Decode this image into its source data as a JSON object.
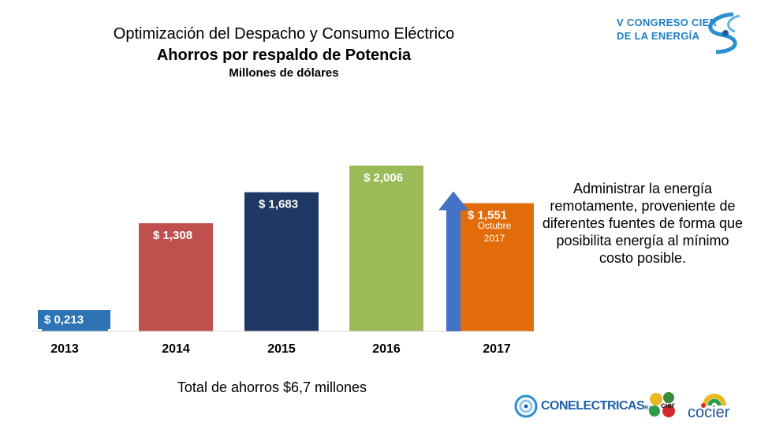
{
  "titles": {
    "line1": "Optimización del Despacho y Consumo Eléctrico",
    "line2": "Ahorros por respaldo de Potencia",
    "line3": "Millones de dólares"
  },
  "logos": {
    "congreso": "V CONGRESO CIER\nDE LA ENERGÍA",
    "conelectricas": "CONELECTRICAS",
    "conelectricas_suffix": "R.L.",
    "cier": "cier",
    "cocier": "cocier"
  },
  "side_text": "Administrar la energía remotamente,  proveniente de diferentes fuentes de forma que posibilita energía al mínimo costo posible.",
  "total_text": "Total de ahorros $6,7 millones",
  "colors": {
    "bar_2013": "#2e74b5",
    "bar_2014": "#c0504d",
    "bar_2015": "#1f3864",
    "bar_2016": "#9bbb59",
    "bar_2017": "#e36c0a",
    "arrow": "#4472c4"
  },
  "chart_data": {
    "type": "bar",
    "title": "Ahorros por respaldo de Potencia",
    "ylabel": "Millones de dólares",
    "categories": [
      "2013",
      "2014",
      "2015",
      "2016",
      "2017"
    ],
    "values": [
      0.213,
      1.308,
      1.683,
      2.006,
      1.551
    ],
    "data_labels": [
      "$ 0,213",
      "$ 1,308",
      "$ 1,683",
      "$ 2,006",
      "$ 1,551"
    ],
    "annotations": [
      {
        "category": "2017",
        "text": "Octubre\n2017"
      }
    ],
    "ylim": [
      0,
      2.1
    ],
    "grid": false
  }
}
